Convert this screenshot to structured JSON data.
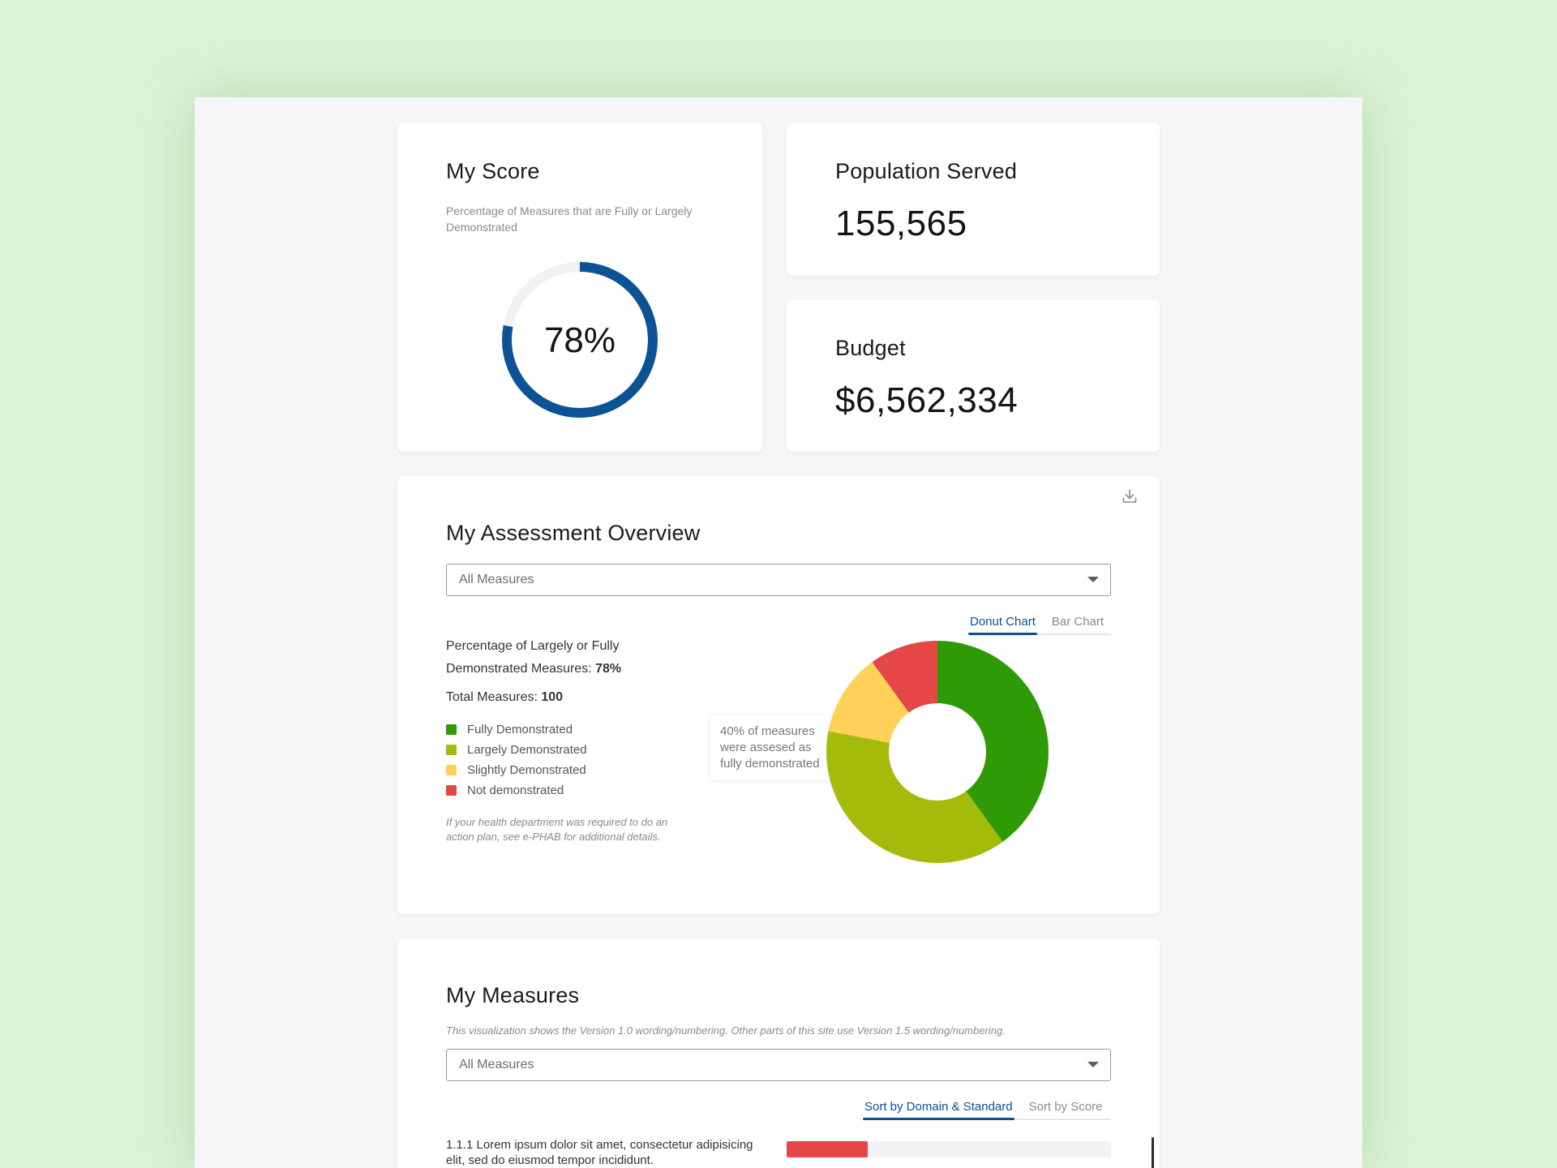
{
  "score_card": {
    "title": "My Score",
    "subtitle": "Percentage of Measures that are Fully or Largely Demonstrated",
    "percent_label": "78%",
    "percent_value": 78,
    "ring_color": "#0b5394",
    "track_color": "#f0f1f3"
  },
  "population_card": {
    "title": "Population Served",
    "value": "155,565"
  },
  "budget_card": {
    "title": "Budget",
    "value": "$6,562,334"
  },
  "assessment": {
    "title": "My Assessment Overview",
    "download_icon": "download-icon",
    "filter": {
      "selected": "All Measures"
    },
    "tabs": [
      {
        "label": "Donut Chart",
        "active": true
      },
      {
        "label": "Bar Chart",
        "active": false
      }
    ],
    "summary_line1": "Percentage of Largely or Fully",
    "summary_line2": "Demonstrated Measures: ",
    "summary_value": "78%",
    "total_label": "Total Measures: ",
    "total_value": "100",
    "legend": [
      {
        "label": "Fully Demonstrated",
        "color": "#2e9a06"
      },
      {
        "label": "Largely Demonstrated",
        "color": "#a3bb0a"
      },
      {
        "label": "Slightly Demonstrated",
        "color": "#ffd158"
      },
      {
        "label": "Not demonstrated",
        "color": "#e54646"
      }
    ],
    "note": "If your health department was required to do an action plan, see e-PHAB for additional details.",
    "tooltip": "40% of measures were assesed as fully demonstrated"
  },
  "chart_data": {
    "type": "pie",
    "categories": [
      "Fully Demonstrated",
      "Largely Demonstrated",
      "Slightly Demonstrated",
      "Not demonstrated"
    ],
    "values": [
      40,
      38,
      12,
      10
    ],
    "colors": [
      "#2e9a06",
      "#a3bb0a",
      "#ffd158",
      "#e54646"
    ]
  },
  "measures": {
    "title": "My Measures",
    "note": "This visualization shows the Version 1.0 wording/numbering. Other parts of this site use Version 1.5 wording/numbering.",
    "filter": {
      "selected": "All Measures"
    },
    "tabs": [
      {
        "label": "Sort by Domain & Standard",
        "active": true
      },
      {
        "label": "Sort by Score",
        "active": false
      }
    ],
    "rows": [
      {
        "label": "1.1.1 Lorem ipsum dolor sit amet, consectetur adipisicing elit, sed do eiusmod tempor incididunt.",
        "score_fraction": 0.25,
        "color": "#e54646"
      }
    ]
  }
}
